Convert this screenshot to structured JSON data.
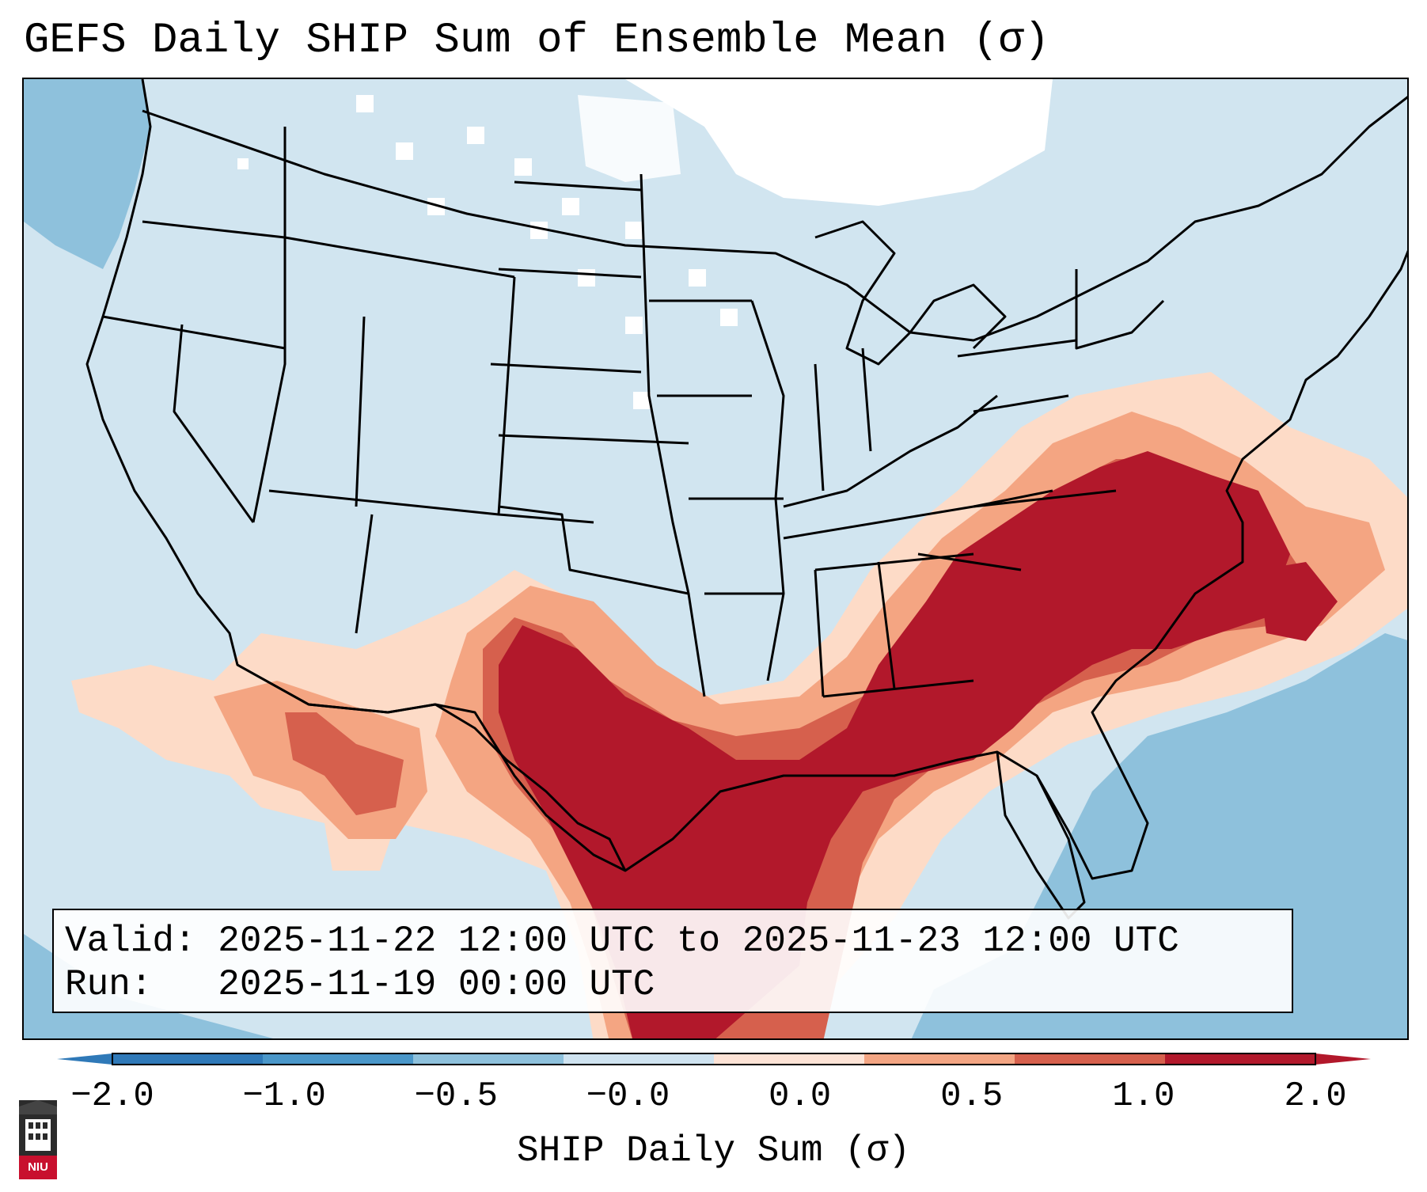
{
  "title": "GEFS Daily SHIP Sum of Ensemble Mean (σ)",
  "info": {
    "valid_label": "Valid:",
    "valid_value": "2025-11-22 12:00 UTC to 2025-11-23 12:00 UTC",
    "run_label": "Run:",
    "run_value": "2025-11-19 00:00 UTC"
  },
  "colorbar": {
    "label": "SHIP Daily Sum (σ)",
    "ticks": [
      "−2.0",
      "−1.0",
      "−0.5",
      "−0.0",
      "0.0",
      "0.5",
      "1.0",
      "2.0"
    ],
    "bin_colors": [
      "#2f79b8",
      "#4a97c9",
      "#8ec1dc",
      "#cfe3f0",
      "#fde3d6",
      "#f3a583",
      "#d6604d",
      "#b2182b"
    ],
    "extend": "both"
  },
  "logo": {
    "text": "NIU"
  },
  "map": {
    "region": "CONUS",
    "ocean_low_color": "#8ec1dc",
    "background_color": "#d1e5f0",
    "no_anomaly_color": "#ffffff",
    "anomaly_colors": {
      "weak": "#fddbc7",
      "moderate": "#f4a582",
      "strong": "#d6604d",
      "extreme": "#b2182b"
    },
    "state_line_color": "#000000"
  }
}
